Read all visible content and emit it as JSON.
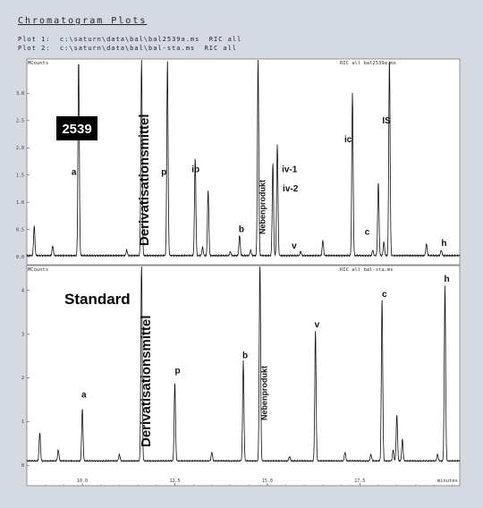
{
  "header": {
    "title": "Chromatogram Plots",
    "plot1": "Plot 1:  c:\\saturn\\data\\bal\\bal2539a.ms  RIC all",
    "plot2": "Plot 2:  c:\\saturn\\data\\bal\\bal-sta.ms  RIC all"
  },
  "colors": {
    "trace": "#111111",
    "panel": "#ffffff",
    "frame": "#d5d9e1",
    "sample_box": "#000000",
    "sample_text": "#ffffff"
  },
  "chart_data": [
    {
      "type": "line",
      "ylabel": "MCounts",
      "file_label": "RIC all bal2539a.ms",
      "sample_label": "2539",
      "ylim": [
        0,
        3.5
      ],
      "yticks": [
        "0.0",
        "0.5",
        "1.0",
        "1.5",
        "2.0",
        "2.5",
        "3.0"
      ],
      "xlim": [
        8.5,
        20.2
      ],
      "baseline": 0.02,
      "peaks": [
        {
          "x": 8.7,
          "h": 0.55,
          "label": ""
        },
        {
          "x": 9.2,
          "h": 0.18,
          "label": ""
        },
        {
          "x": 9.9,
          "h": 3.6,
          "label": "a"
        },
        {
          "x": 11.2,
          "h": 0.1,
          "label": ""
        },
        {
          "x": 11.6,
          "h": 3.6,
          "label": "Derivatisationsmittel"
        },
        {
          "x": 12.3,
          "h": 3.6,
          "label": "p"
        },
        {
          "x": 13.05,
          "h": 1.8,
          "label": "ib"
        },
        {
          "x": 13.25,
          "h": 0.15,
          "label": ""
        },
        {
          "x": 13.4,
          "h": 1.2,
          "label": ""
        },
        {
          "x": 14.0,
          "h": 0.07,
          "label": ""
        },
        {
          "x": 14.25,
          "h": 0.38,
          "label": "b"
        },
        {
          "x": 14.55,
          "h": 0.1,
          "label": ""
        },
        {
          "x": 14.75,
          "h": 3.6,
          "label": "Nebenprodukt"
        },
        {
          "x": 15.15,
          "h": 1.7,
          "label": "iv-1"
        },
        {
          "x": 15.27,
          "h": 2.05,
          "label": "iv-2"
        },
        {
          "x": 15.9,
          "h": 0.08,
          "label": "v"
        },
        {
          "x": 16.5,
          "h": 0.28,
          "label": ""
        },
        {
          "x": 17.3,
          "h": 3.0,
          "label": "ic"
        },
        {
          "x": 17.85,
          "h": 0.1,
          "label": "c"
        },
        {
          "x": 18.0,
          "h": 1.35,
          "label": ""
        },
        {
          "x": 18.15,
          "h": 0.25,
          "label": ""
        },
        {
          "x": 18.3,
          "h": 3.6,
          "label": "IS"
        },
        {
          "x": 19.3,
          "h": 0.22,
          "label": ""
        },
        {
          "x": 19.7,
          "h": 0.1,
          "label": "h"
        }
      ]
    },
    {
      "type": "line",
      "ylabel": "MCounts",
      "file_label": "RIC all bal-sta.ms",
      "sample_label": "Standard",
      "ylim": [
        -0.2,
        4.4
      ],
      "yticks": [
        "0",
        "1",
        "2",
        "3",
        "4"
      ],
      "xlim": [
        8.5,
        20.2
      ],
      "xlabel": "minutes",
      "xticks": [
        "10.0",
        "12.5",
        "15.0",
        "17.5"
      ],
      "baseline": 0.1,
      "peaks": [
        {
          "x": 8.85,
          "h": 0.65,
          "label": ""
        },
        {
          "x": 9.35,
          "h": 0.25,
          "label": ""
        },
        {
          "x": 10.0,
          "h": 1.2,
          "label": "a"
        },
        {
          "x": 11.0,
          "h": 0.15,
          "label": ""
        },
        {
          "x": 11.6,
          "h": 4.6,
          "label": "Derivatisationsmittel"
        },
        {
          "x": 12.5,
          "h": 1.8,
          "label": "p"
        },
        {
          "x": 13.5,
          "h": 0.2,
          "label": ""
        },
        {
          "x": 14.35,
          "h": 2.3,
          "label": "b"
        },
        {
          "x": 14.8,
          "h": 4.6,
          "label": "Nebenprodukt"
        },
        {
          "x": 15.6,
          "h": 0.1,
          "label": ""
        },
        {
          "x": 16.3,
          "h": 3.0,
          "label": "v"
        },
        {
          "x": 17.1,
          "h": 0.2,
          "label": ""
        },
        {
          "x": 17.8,
          "h": 0.15,
          "label": ""
        },
        {
          "x": 18.1,
          "h": 3.7,
          "label": "c"
        },
        {
          "x": 18.4,
          "h": 0.25,
          "label": ""
        },
        {
          "x": 18.5,
          "h": 1.05,
          "label": ""
        },
        {
          "x": 18.65,
          "h": 0.5,
          "label": ""
        },
        {
          "x": 19.6,
          "h": 0.15,
          "label": ""
        },
        {
          "x": 19.8,
          "h": 4.0,
          "label": "h"
        }
      ]
    }
  ]
}
